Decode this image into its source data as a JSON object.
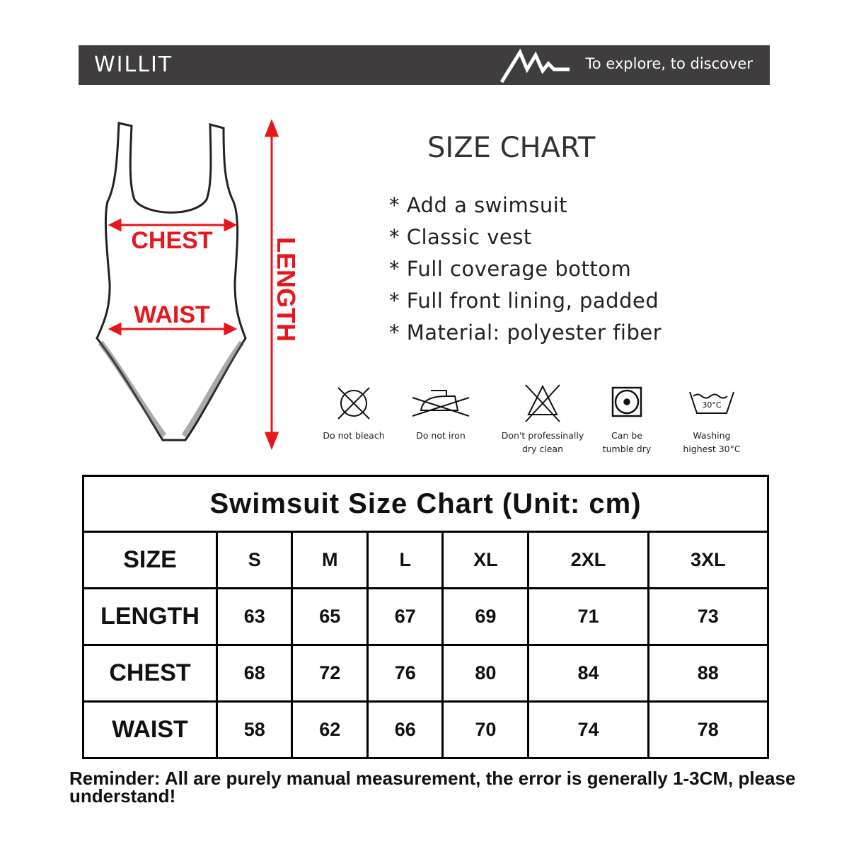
{
  "header": {
    "brand": "WILLIT",
    "slogan": "To explore, to discover"
  },
  "diagram": {
    "chest_label": "CHEST",
    "waist_label": "WAIST",
    "length_label": "LENGTH",
    "accent_color": "#e8161b"
  },
  "title": "SIZE CHART",
  "features": [
    "* Add a swimsuit",
    "* Classic vest",
    "* Full coverage bottom",
    "* Full front lining, padded",
    "* Material: polyester fiber"
  ],
  "care": [
    {
      "icon": "no-bleach-icon",
      "line1": "Do not bleach",
      "line2": ""
    },
    {
      "icon": "no-iron-icon",
      "line1": "Do not iron",
      "line2": ""
    },
    {
      "icon": "no-dry-clean-icon",
      "line1": "Don't professinally",
      "line2": "dry clean"
    },
    {
      "icon": "tumble-dry-icon",
      "line1": "Can be",
      "line2": "tumble dry"
    },
    {
      "icon": "wash-30-icon",
      "line1": "Washing",
      "line2": "highest 30°C",
      "badge": "30°C"
    }
  ],
  "table": {
    "caption": "Swimsuit Size Chart (Unit: cm)",
    "header": [
      "SIZE",
      "S",
      "M",
      "L",
      "XL",
      "2XL",
      "3XL"
    ],
    "rows": [
      [
        "LENGTH",
        "63",
        "65",
        "67",
        "69",
        "71",
        "73"
      ],
      [
        "CHEST",
        "68",
        "72",
        "76",
        "80",
        "84",
        "88"
      ],
      [
        "WAIST",
        "58",
        "62",
        "66",
        "70",
        "74",
        "78"
      ]
    ]
  },
  "note": "Reminder: All are purely manual measurement, the error is generally 1-3CM, please understand!"
}
